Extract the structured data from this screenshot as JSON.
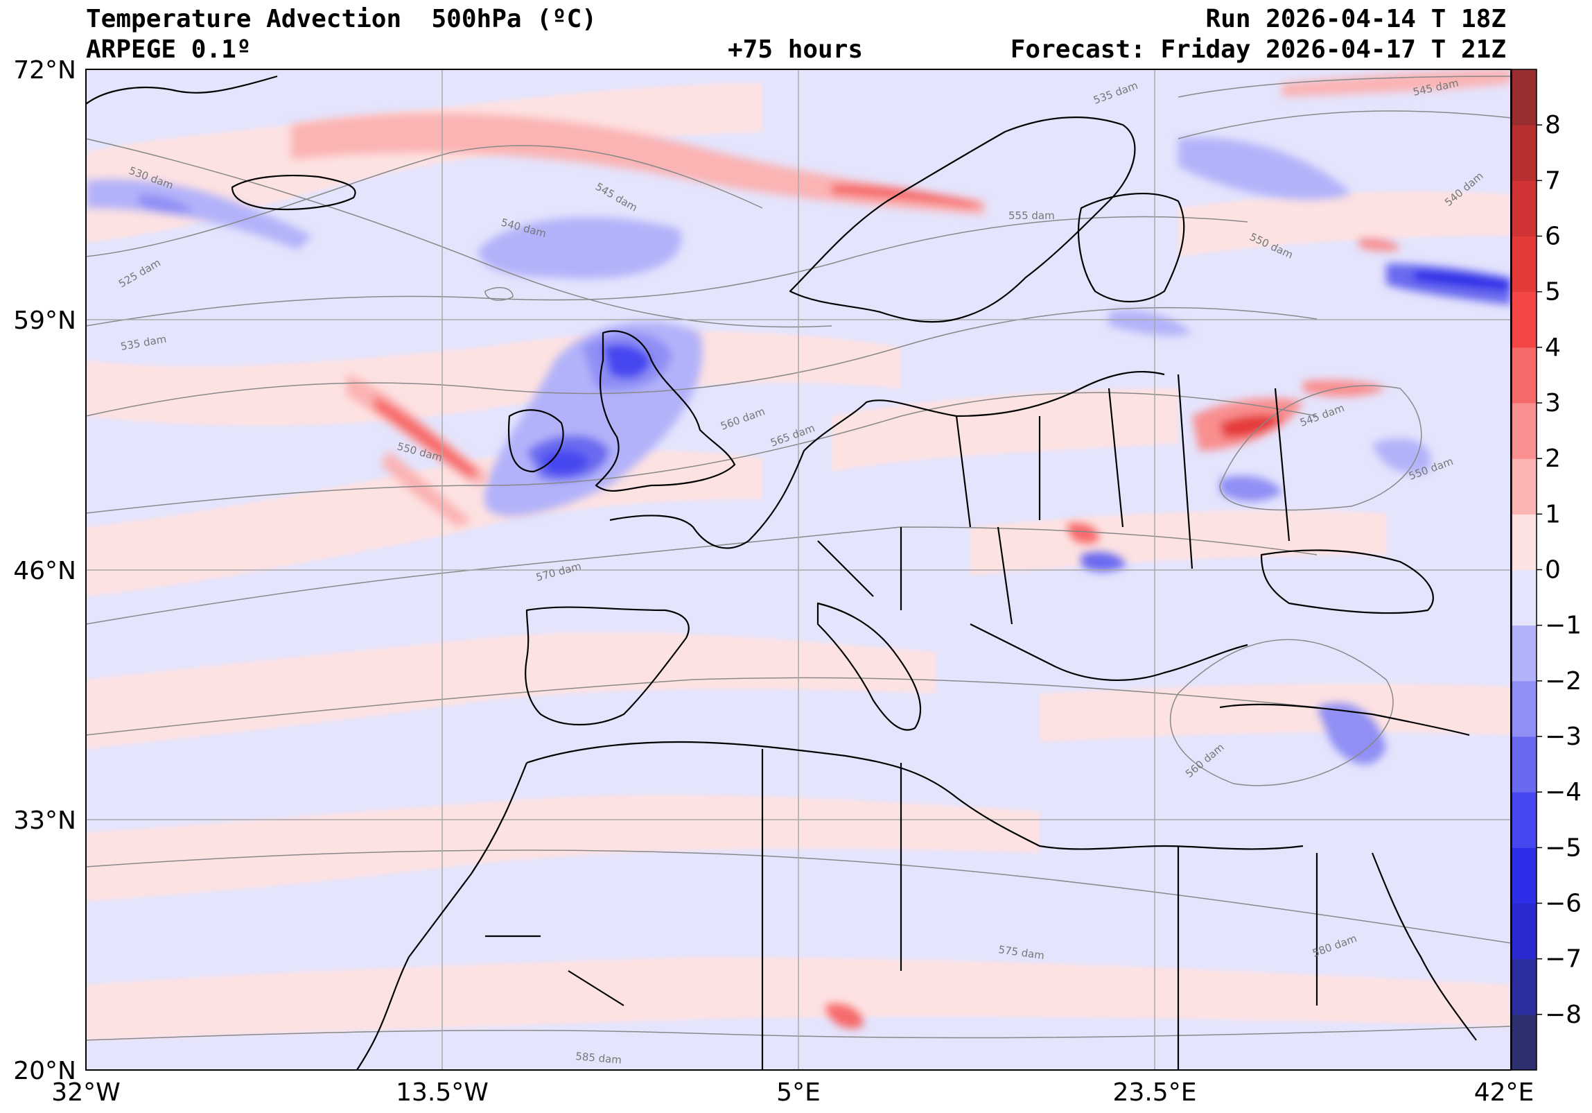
{
  "header": {
    "title": "Temperature Advection  500hPa (ºC)",
    "model": "ARPEGE 0.1º",
    "lead": "+75 hours",
    "run": "Run 2026-04-14 T 18Z",
    "forecast": "Forecast: Friday 2026-04-17 T 21Z"
  },
  "map": {
    "lon_range": [
      -32,
      42
    ],
    "lat_range": [
      20,
      72
    ],
    "lon_ticks": [
      {
        "value": -32,
        "label": "32°W"
      },
      {
        "value": -13.5,
        "label": "13.5°W"
      },
      {
        "value": 5,
        "label": "5°E"
      },
      {
        "value": 23.5,
        "label": "23.5°E"
      },
      {
        "value": 42,
        "label": "42°E"
      }
    ],
    "lat_ticks": [
      {
        "value": 72,
        "label": "72°N"
      },
      {
        "value": 59,
        "label": "59°N"
      },
      {
        "value": 46,
        "label": "46°N"
      },
      {
        "value": 33,
        "label": "33°N"
      },
      {
        "value": 20,
        "label": "20°N"
      }
    ],
    "contour_labels": [
      "525 dam",
      "530 dam",
      "535 dam",
      "540 dam",
      "545 dam",
      "550 dam",
      "555 dam",
      "560 dam",
      "565 dam",
      "570 dam",
      "575 dam",
      "580 dam",
      "585 dam",
      "545 dam",
      "540 dam",
      "550 dam",
      "545 dam",
      "560 dam",
      "550 dam",
      "535 dam"
    ],
    "colorbar": {
      "min": -9,
      "max": 9,
      "tick_values": [
        -8,
        -7,
        -6,
        -5,
        -4,
        -3,
        -2,
        -1,
        0,
        1,
        2,
        3,
        4,
        5,
        6,
        7,
        8
      ],
      "tick_labels": [
        "−8",
        "−7",
        "−6",
        "−5",
        "−4",
        "−3",
        "−2",
        "−1",
        "0",
        "1",
        "2",
        "3",
        "4",
        "5",
        "6",
        "7",
        "8"
      ],
      "colors": {
        "-9": "#2e3070",
        "-8": "#2c2ea0",
        "-7": "#2a2ad0",
        "-6": "#2e2ee8",
        "-5": "#4747f0",
        "-4": "#6a6af0",
        "-3": "#8f8ff5",
        "-2": "#b2b2fa",
        "-1": "#e4e4fd",
        "0": "#fde2e2",
        "1": "#fbb3b3",
        "2": "#f98f8f",
        "3": "#f76a6a",
        "4": "#f54646",
        "5": "#e53a3a",
        "6": "#d03434",
        "7": "#b83030",
        "8": "#9a2d2d"
      }
    }
  }
}
